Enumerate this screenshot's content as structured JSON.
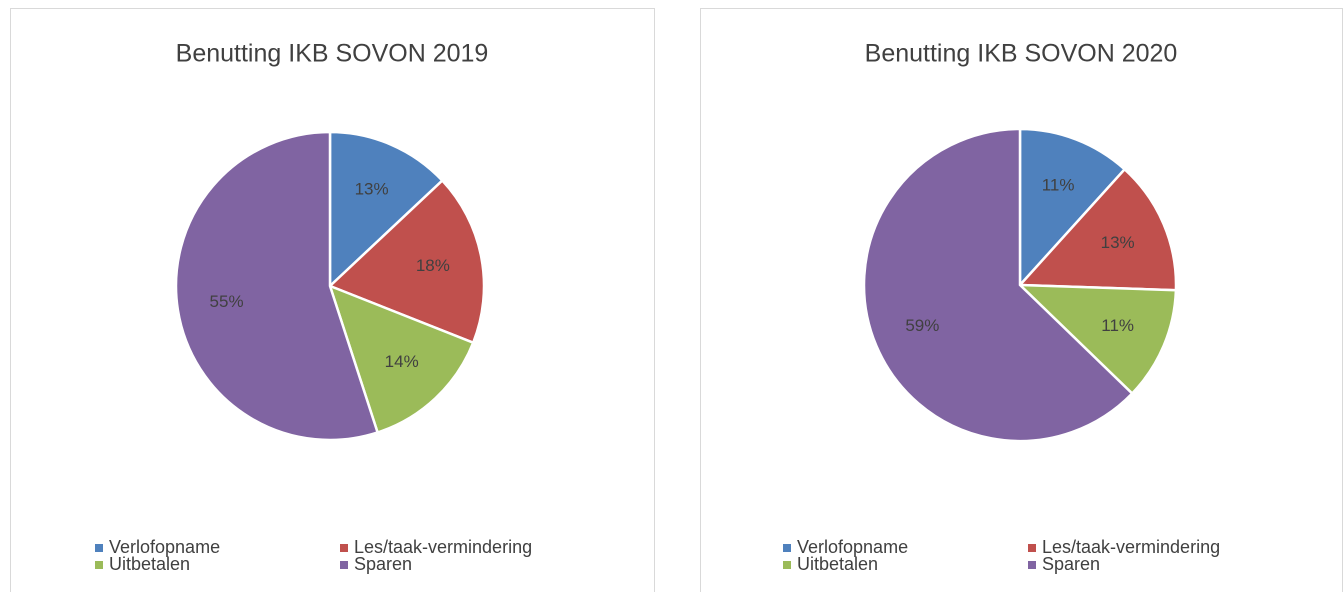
{
  "chart_data": [
    {
      "type": "pie",
      "title": "Benutting IKB SOVON 2019",
      "categories": [
        "Verlofopname",
        "Les/taak-vermindering",
        "Uitbetalen",
        "Sparen"
      ],
      "values": [
        13,
        18,
        14,
        55
      ],
      "value_labels": [
        "13%",
        "18%",
        "14%",
        "55%"
      ],
      "colors": [
        "#4f81bd",
        "#c0504d",
        "#9bbb59",
        "#8064a2"
      ],
      "legend": "bottom"
    },
    {
      "type": "pie",
      "title": "Benutting IKB SOVON 2020",
      "categories": [
        "Verlofopname",
        "Les/taak-vermindering",
        "Uitbetalen",
        "Sparen"
      ],
      "values": [
        11,
        13,
        11,
        59
      ],
      "value_labels": [
        "11%",
        "13%",
        "11%",
        "59%"
      ],
      "colors": [
        "#4f81bd",
        "#c0504d",
        "#9bbb59",
        "#8064a2"
      ],
      "legend": "bottom"
    }
  ]
}
